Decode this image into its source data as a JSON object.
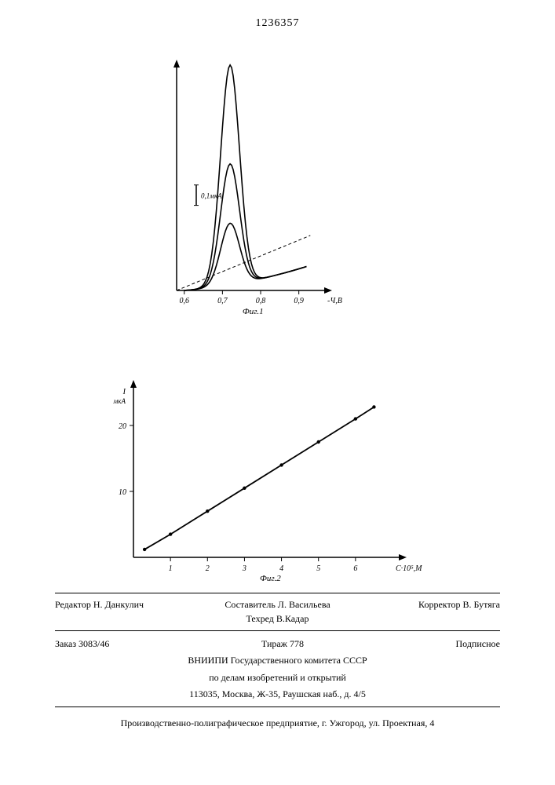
{
  "document_number": "1236357",
  "fig1": {
    "type": "line",
    "x_ticks": [
      0.6,
      0.7,
      0.8,
      0.9
    ],
    "x_tick_labels": [
      "0,6",
      "0,7",
      "0,8",
      "0,9"
    ],
    "x_axis_end_label": "-Ч,В",
    "caption": "Фиг.1",
    "scale_bar_label": "0,1мкА",
    "curves": [
      {
        "peak_x": 0.72,
        "peak_height": 1.0
      },
      {
        "peak_x": 0.72,
        "peak_height": 0.55
      },
      {
        "peak_x": 0.72,
        "peak_height": 0.28
      }
    ],
    "stroke_color": "#000000",
    "background": "#ffffff",
    "axis_fontsize": 10
  },
  "fig2": {
    "type": "line",
    "y_label": "I мкА",
    "x_label_end": "C·10⁵,М",
    "caption": "Фиг.2",
    "x_ticks": [
      1,
      2,
      3,
      4,
      5,
      6
    ],
    "y_ticks": [
      10,
      20
    ],
    "xlim": [
      0,
      7
    ],
    "ylim": [
      0,
      25
    ],
    "points": [
      {
        "x": 0.3,
        "y": 1.2
      },
      {
        "x": 1,
        "y": 3.5
      },
      {
        "x": 2,
        "y": 7.0
      },
      {
        "x": 3,
        "y": 10.5
      },
      {
        "x": 4,
        "y": 14.0
      },
      {
        "x": 5,
        "y": 17.5
      },
      {
        "x": 6,
        "y": 21.0
      },
      {
        "x": 6.5,
        "y": 22.8
      }
    ],
    "stroke_color": "#000000",
    "background": "#ffffff",
    "axis_fontsize": 10
  },
  "footer": {
    "editor": "Редактор Н. Данкулич",
    "compiler": "Составитель Л. Васильева",
    "techred": "Техред В.Кадар",
    "corrector": "Корректор В. Бутяга",
    "order": "Заказ 3083/46",
    "tirazh": "Тираж 778",
    "podpisnoe": "Подписное",
    "institute1": "ВНИИПИ Государственного комитета СССР",
    "institute2": "по делам изобретений и открытий",
    "address": "113035, Москва, Ж-35, Раушская наб., д. 4/5",
    "production": "Производственно-полиграфическое предприятие, г. Ужгород, ул. Проектная, 4"
  }
}
